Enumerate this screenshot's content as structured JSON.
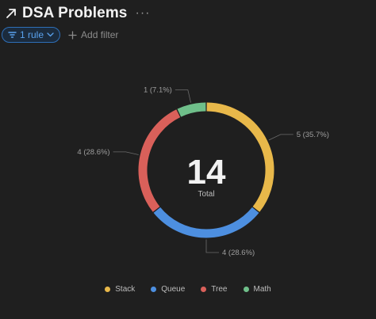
{
  "header": {
    "title": "DSA Problems",
    "more_label": "···"
  },
  "filters": {
    "rule_label": "1 rule",
    "add_filter_label": "Add filter"
  },
  "chart_data": {
    "type": "pie",
    "variant": "donut",
    "total_value": "14",
    "total_label": "Total",
    "categories": [
      "Stack",
      "Queue",
      "Tree",
      "Math"
    ],
    "values": [
      5,
      4,
      4,
      1
    ],
    "slice_labels": [
      "5 (35.7%)",
      "4 (28.6%)",
      "4 (28.6%)",
      "1 (7.1%)"
    ],
    "colors": [
      "#e8b84a",
      "#4d8fe0",
      "#d9605a",
      "#6fbf8a"
    ],
    "start_angle_deg": 0,
    "direction": "clockwise",
    "legend_position": "bottom"
  }
}
